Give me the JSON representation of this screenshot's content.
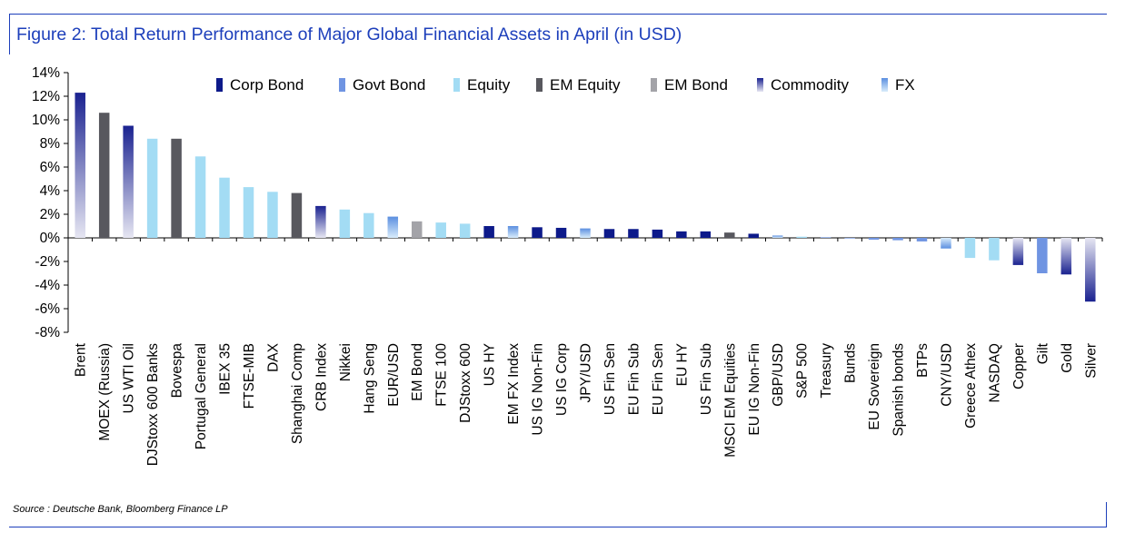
{
  "figure": {
    "title": "Figure 2: Total Return Performance of Major Global Financial Assets in April (in USD)",
    "source": "Source : Deutsche Bank, Bloomberg Finance LP"
  },
  "colors": {
    "Corp Bond": "#0d1a8a",
    "Govt Bond": "#6f94e2",
    "Equity": "#a3dcf4",
    "EM Equity": "#58585e",
    "EM Bond": "#a3a3a8",
    "Commodity": "#28309c",
    "FX": "#6da7e8"
  },
  "chart_data": {
    "type": "bar",
    "title": "Figure 2: Total Return Performance of Major Global Financial Assets in April (in USD)",
    "xlabel": "",
    "ylabel": "",
    "ylim": [
      -8,
      14
    ],
    "yticks": [
      "14%",
      "12%",
      "10%",
      "8%",
      "6%",
      "4%",
      "2%",
      "0%",
      "-2%",
      "-4%",
      "-6%",
      "-8%"
    ],
    "legend": [
      "Corp Bond",
      "Govt Bond",
      "Equity",
      "EM Equity",
      "EM Bond",
      "Commodity",
      "FX"
    ],
    "categories": [
      "Brent",
      "MOEX (Russia)",
      "US WTI Oil",
      "DJStoxx 600 Banks",
      "Bovespa",
      "Portugal General",
      "IBEX 35",
      "FTSE-MIB",
      "DAX",
      "Shanghai Comp",
      "CRB Index",
      "Nikkei",
      "Hang Seng",
      "EUR/USD",
      "EM Bond",
      "FTSE 100",
      "DJStoxx 600",
      "US HY",
      "EM FX Index",
      "US IG Non-Fin",
      "US IG Corp",
      "JPY/USD",
      "US Fin Sen",
      "EU Fin Sub",
      "EU Fin Sen",
      "EU HY",
      "US Fin Sub",
      "MSCI EM Equities",
      "EU IG Non-Fin",
      "GBP/USD",
      "S&P 500",
      "Treasury",
      "Bunds",
      "EU Sovereign",
      "Spanish bonds",
      "BTPs",
      "CNY/USD",
      "Greece Athex",
      "NASDAQ",
      "Copper",
      "Gilt",
      "Gold",
      "Silver"
    ],
    "values": [
      12.3,
      10.6,
      9.5,
      8.4,
      8.4,
      6.9,
      5.1,
      4.3,
      3.9,
      3.8,
      2.7,
      2.4,
      2.1,
      1.8,
      1.4,
      1.3,
      1.2,
      1.0,
      1.0,
      0.9,
      0.85,
      0.8,
      0.75,
      0.75,
      0.7,
      0.55,
      0.55,
      0.45,
      0.35,
      0.2,
      0.1,
      0.05,
      -0.05,
      -0.15,
      -0.2,
      -0.3,
      -0.9,
      -1.7,
      -1.9,
      -2.3,
      -3.0,
      -3.1,
      -5.4
    ],
    "asset_class": [
      "Commodity",
      "EM Equity",
      "Commodity",
      "Equity",
      "EM Equity",
      "Equity",
      "Equity",
      "Equity",
      "Equity",
      "EM Equity",
      "Commodity",
      "Equity",
      "Equity",
      "FX",
      "EM Bond",
      "Equity",
      "Equity",
      "Corp Bond",
      "FX",
      "Corp Bond",
      "Corp Bond",
      "FX",
      "Corp Bond",
      "Corp Bond",
      "Corp Bond",
      "Corp Bond",
      "Corp Bond",
      "EM Equity",
      "Corp Bond",
      "FX",
      "Equity",
      "Govt Bond",
      "Govt Bond",
      "Govt Bond",
      "Govt Bond",
      "Govt Bond",
      "FX",
      "Equity",
      "Equity",
      "Commodity",
      "Govt Bond",
      "Commodity",
      "Commodity"
    ]
  }
}
